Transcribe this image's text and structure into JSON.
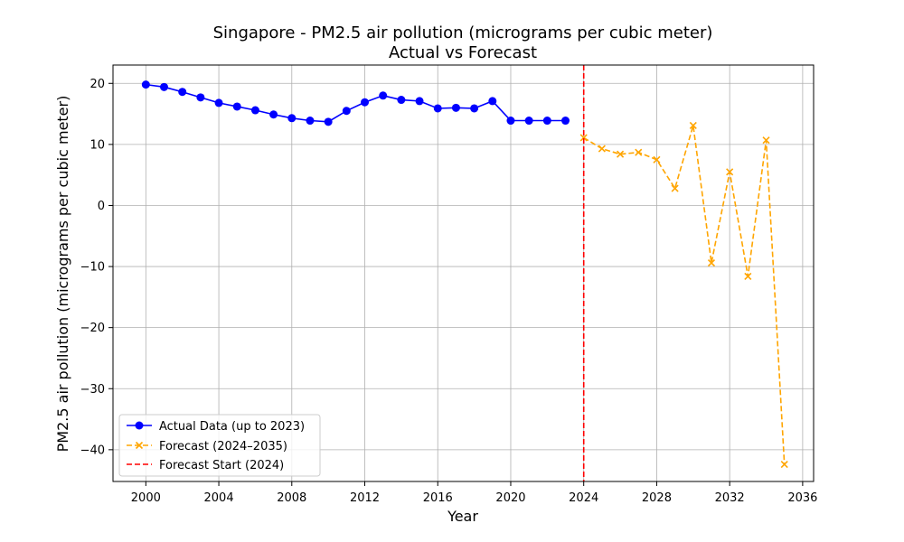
{
  "chart_data": {
    "type": "line",
    "title": "Singapore - PM2.5 air pollution (micrograms per cubic meter)",
    "subtitle": "Actual vs Forecast",
    "xlabel": "Year",
    "ylabel": "PM2.5 air pollution (micrograms per cubic meter)",
    "xlim": [
      1998.2,
      2036.6
    ],
    "ylim": [
      -45.2,
      23.0
    ],
    "xticks": [
      2000,
      2004,
      2008,
      2012,
      2016,
      2020,
      2024,
      2028,
      2032,
      2036
    ],
    "yticks": [
      -40,
      -30,
      -20,
      -10,
      0,
      10,
      20
    ],
    "grid": true,
    "legend_position": "lower-left",
    "series": [
      {
        "name": "Actual Data (up to 2023)",
        "color": "#0000ff",
        "style": "solid",
        "marker": "circle",
        "x": [
          2000,
          2001,
          2002,
          2003,
          2004,
          2005,
          2006,
          2007,
          2008,
          2009,
          2010,
          2011,
          2012,
          2013,
          2014,
          2015,
          2016,
          2017,
          2018,
          2019,
          2020,
          2021,
          2022,
          2023
        ],
        "y": [
          19.8,
          19.4,
          18.6,
          17.7,
          16.8,
          16.2,
          15.6,
          14.9,
          14.3,
          13.9,
          13.7,
          15.5,
          16.9,
          18.0,
          17.3,
          17.1,
          15.9,
          16.0,
          15.9,
          17.1,
          13.9,
          13.9,
          13.9,
          13.9
        ]
      },
      {
        "name": "Forecast (2024–2035)",
        "color": "#ffa500",
        "style": "dashed",
        "marker": "x",
        "x": [
          2024,
          2025,
          2026,
          2027,
          2028,
          2029,
          2030,
          2031,
          2032,
          2033,
          2034,
          2035
        ],
        "y": [
          11.1,
          9.3,
          8.4,
          8.7,
          7.5,
          2.8,
          13.1,
          -9.4,
          5.5,
          -11.6,
          10.7,
          -42.4
        ]
      }
    ],
    "vline": {
      "name": "Forecast Start (2024)",
      "x": 2024,
      "color": "#ff0000",
      "style": "dashed"
    }
  }
}
